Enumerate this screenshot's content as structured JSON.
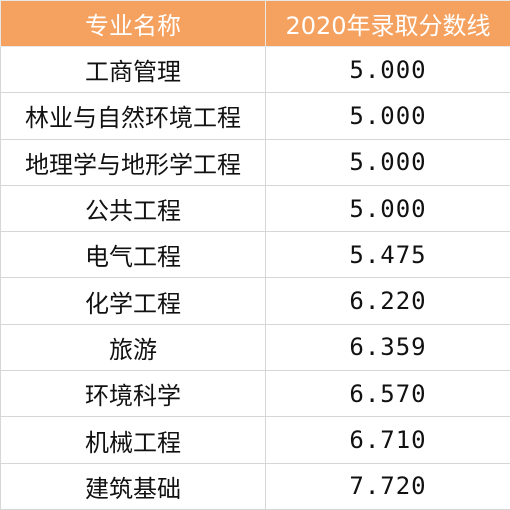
{
  "table": {
    "headers": [
      "专业名称",
      "2020年录取分数线"
    ],
    "rows": [
      {
        "major": "工商管理",
        "score": "5.000"
      },
      {
        "major": "林业与自然环境工程",
        "score": "5.000"
      },
      {
        "major": "地理学与地形学工程",
        "score": "5.000"
      },
      {
        "major": "公共工程",
        "score": "5.000"
      },
      {
        "major": "电气工程",
        "score": "5.475"
      },
      {
        "major": "化学工程",
        "score": "6.220"
      },
      {
        "major": "旅游",
        "score": "6.359"
      },
      {
        "major": "环境科学",
        "score": "6.570"
      },
      {
        "major": "机械工程",
        "score": "6.710"
      },
      {
        "major": "建筑基础",
        "score": "7.720"
      }
    ]
  },
  "colors": {
    "header_bg": "#f5a15f",
    "header_text": "#ffffff",
    "border": "#d6d6d6"
  }
}
